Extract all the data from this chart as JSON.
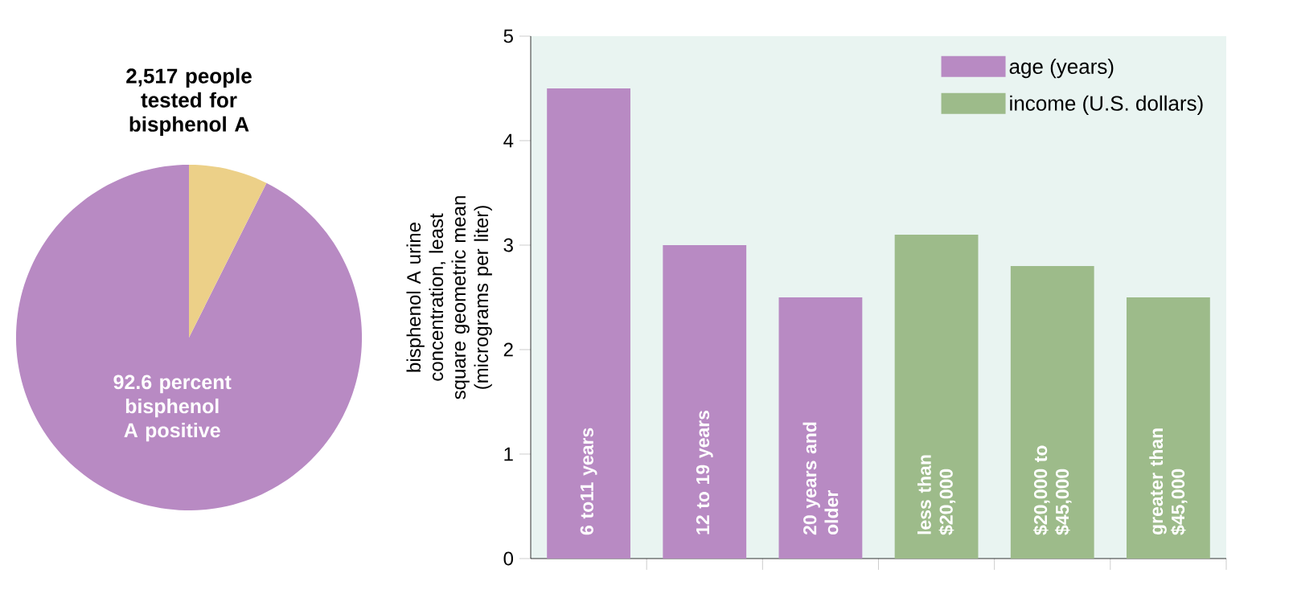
{
  "chart_data": [
    {
      "type": "pie",
      "title": "2,517 people tested for bisphenol A",
      "categories": [
        "92.6 percent bisphenol A positive",
        null
      ],
      "values": [
        92.6,
        7.4
      ],
      "colors": [
        "#b88ac3",
        "#ecd088"
      ]
    },
    {
      "type": "bar",
      "ylabel": "bisphenol A urine concentration, least square geometric mean (micrograms per liter)",
      "categories": [
        "6 to11 years",
        "12 to 19 years",
        "20 years and older",
        "less than $20,000",
        "$20,000 to $45,000",
        "greater than $45,000"
      ],
      "series": [
        {
          "name": "age (years)",
          "color": "#b88ac3",
          "values": [
            4.5,
            3.0,
            2.5,
            null,
            null,
            null
          ]
        },
        {
          "name": "income (U.S. dollars)",
          "color": "#9dbb8a",
          "values": [
            null,
            null,
            null,
            3.1,
            2.8,
            2.5
          ]
        }
      ],
      "ylim": [
        0,
        5
      ],
      "yticks": [
        0,
        1,
        2,
        3,
        4,
        5
      ],
      "legend": "top right"
    }
  ]
}
